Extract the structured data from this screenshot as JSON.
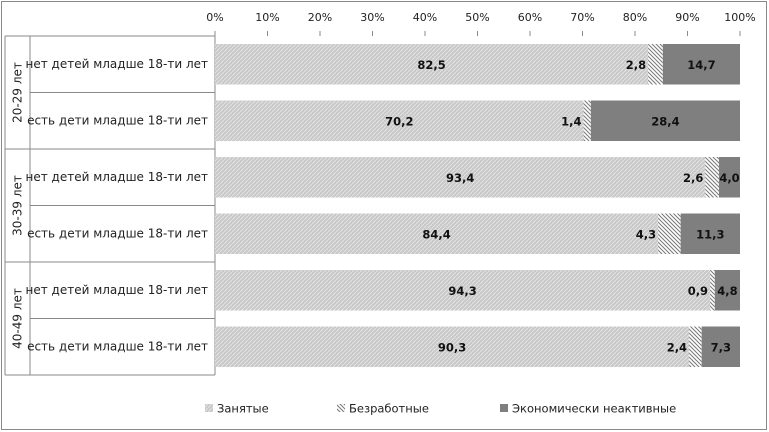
{
  "chart_data": {
    "type": "stacked-bar-100",
    "categories": [
      "нет детей младше 18-ти лет",
      "есть дети младше 18-ти лет",
      "нет детей младше 18-ти лет",
      "есть дети младше 18-ти лет",
      "нет детей младше 18-ти лет",
      "есть дети младше 18-ти лет"
    ],
    "groups": [
      "20-29 лет",
      "30-39 лет",
      "40-49 лет"
    ],
    "series": [
      {
        "name": "Занятые",
        "color": "#c9c9c9",
        "values": [
          82.5,
          70.2,
          93.4,
          84.4,
          94.3,
          90.3
        ],
        "value_labels": [
          "82,5",
          "70,2",
          "93,4",
          "84,4",
          "94,3",
          "90,3"
        ]
      },
      {
        "name": "Безработные",
        "color": "#ffffff",
        "values": [
          2.8,
          1.4,
          2.6,
          4.3,
          0.9,
          2.4
        ],
        "value_labels": [
          "2,8",
          "1,4",
          "2,6",
          "4,3",
          "0,9",
          "2,4"
        ]
      },
      {
        "name": "Экономически неактивные",
        "color": "#7f7f7f",
        "values": [
          14.7,
          28.4,
          4.0,
          11.3,
          4.8,
          7.3
        ],
        "value_labels": [
          "14,7",
          "28,4",
          "4,0",
          "11,3",
          "4,8",
          "7,3"
        ]
      }
    ],
    "xlim": [
      0,
      100
    ],
    "xticks": [
      {
        "value": 0,
        "label": "0%"
      },
      {
        "value": 10,
        "label": "10%"
      },
      {
        "value": 20,
        "label": "20%"
      },
      {
        "value": 30,
        "label": "30%"
      },
      {
        "value": 40,
        "label": "40%"
      },
      {
        "value": 50,
        "label": "50%"
      },
      {
        "value": 60,
        "label": "60%"
      },
      {
        "value": 70,
        "label": "70%"
      },
      {
        "value": 80,
        "label": "80%"
      },
      {
        "value": 90,
        "label": "90%"
      },
      {
        "value": 100,
        "label": "100%"
      }
    ],
    "legend": "bottom"
  }
}
